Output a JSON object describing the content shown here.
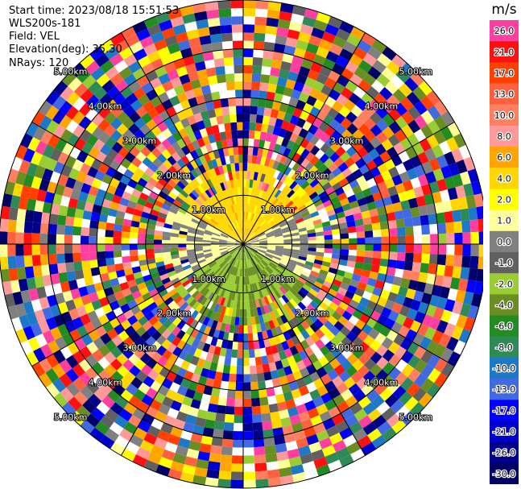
{
  "header": {
    "start_time": "Start time: 2023/08/18 15:51:53",
    "instrument": "WLS200s-181",
    "field": "Field: VEL",
    "elevation": "Elevation(deg): 35.30",
    "nrays": "NRays: 120"
  },
  "colorbar": {
    "unit": "m/s",
    "bounds": [
      26.0,
      21.0,
      17.0,
      13.0,
      10.0,
      8.0,
      6.0,
      4.0,
      2.0,
      1.0,
      0.0,
      -1.0,
      -2.0,
      -4.0,
      -6.0,
      -8.0,
      -10.0,
      -13.0,
      -17.0,
      -21.0,
      -26.0,
      -30.0
    ],
    "tick_labels": [
      "26.0",
      "21.0",
      "17.0",
      "13.0",
      "10.0",
      "8.0",
      "6.0",
      "4.0",
      "2.0",
      "1.0",
      "0.0",
      "-1.0",
      "-2.0",
      "-4.0",
      "-6.0",
      "-8.0",
      "-10.0",
      "-13.0",
      "-17.0",
      "-21.0",
      "-26.0",
      "-30.0"
    ],
    "colors": [
      "#ff3fa0",
      "#ff1010",
      "#ff4000",
      "#ff6040",
      "#ff8060",
      "#ff9999",
      "#ffa500",
      "#ffd700",
      "#ffff00",
      "#ffff99",
      "#808080",
      "#606060",
      "#9acd32",
      "#6b8e23",
      "#228b22",
      "#2e8b57",
      "#1e78c8",
      "#4169e1",
      "#0000ff",
      "#0000cd",
      "#00008b",
      "#000066"
    ]
  },
  "chart_data": {
    "type": "heatmap",
    "projection": "PPI polar",
    "field": "VEL",
    "units": "m/s",
    "nrays": 120,
    "elevation_deg": 35.3,
    "range_rings_km": [
      1.0,
      2.0,
      3.0,
      4.0,
      5.0
    ],
    "ring_labels": [
      "1.00km",
      "2.00km",
      "3.00km",
      "4.00km",
      "5.00km"
    ],
    "max_range_km": 5.0,
    "value_range": [
      -30.0,
      26.0
    ],
    "near_field": [
      {
        "sector": "north",
        "range_km": [
          0.3,
          1.6
        ],
        "approx_value_ms": 3.0
      },
      {
        "sector": "east-west",
        "range_km": [
          0.0,
          1.0
        ],
        "approx_value_ms": 0.0
      },
      {
        "sector": "south",
        "range_km": [
          0.3,
          1.6
        ],
        "approx_value_ms": -4.0
      }
    ],
    "far_field": "noise"
  }
}
